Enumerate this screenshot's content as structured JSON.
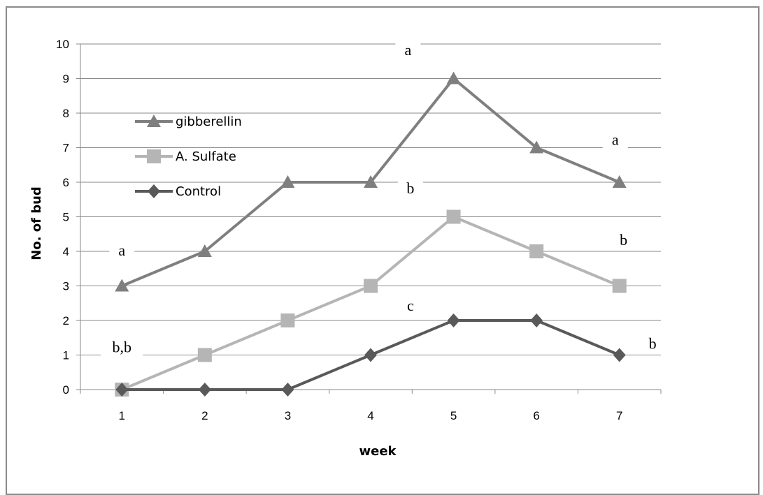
{
  "chart_data": {
    "type": "line",
    "xlabel": "week",
    "ylabel": "No. of bud",
    "x": [
      1,
      2,
      3,
      4,
      5,
      6,
      7
    ],
    "x_tick_labels": [
      "1",
      "2",
      "3",
      "4",
      "5",
      "6",
      "7"
    ],
    "ylim": [
      0,
      10
    ],
    "y_ticks": [
      0,
      1,
      2,
      3,
      4,
      5,
      6,
      7,
      8,
      9,
      10
    ],
    "grid": true,
    "legend_position": "left",
    "series": [
      {
        "name": "gibberellin",
        "marker": "triangle",
        "color": "#7f7f7f",
        "values": [
          3,
          4,
          6,
          6,
          9,
          7,
          6
        ]
      },
      {
        "name": "A. Sulfate",
        "marker": "square",
        "color": "#b5b5b5",
        "values": [
          0,
          1,
          2,
          3,
          5,
          4,
          3
        ]
      },
      {
        "name": "Control",
        "marker": "diamond",
        "color": "#595959",
        "values": [
          0,
          0,
          0,
          1,
          2,
          2,
          1
        ]
      }
    ],
    "annotations": [
      {
        "text": "a",
        "x": 1.0,
        "y": 4.0
      },
      {
        "text": "b,b",
        "x": 1.0,
        "y": 1.2
      },
      {
        "text": "a",
        "x": 4.45,
        "y": 9.8
      },
      {
        "text": "b",
        "x": 4.48,
        "y": 5.8
      },
      {
        "text": "c",
        "x": 4.48,
        "y": 2.4
      },
      {
        "text": "a",
        "x": 6.95,
        "y": 7.2
      },
      {
        "text": "b",
        "x": 7.05,
        "y": 4.3
      },
      {
        "text": "b",
        "x": 7.4,
        "y": 1.3
      }
    ]
  }
}
